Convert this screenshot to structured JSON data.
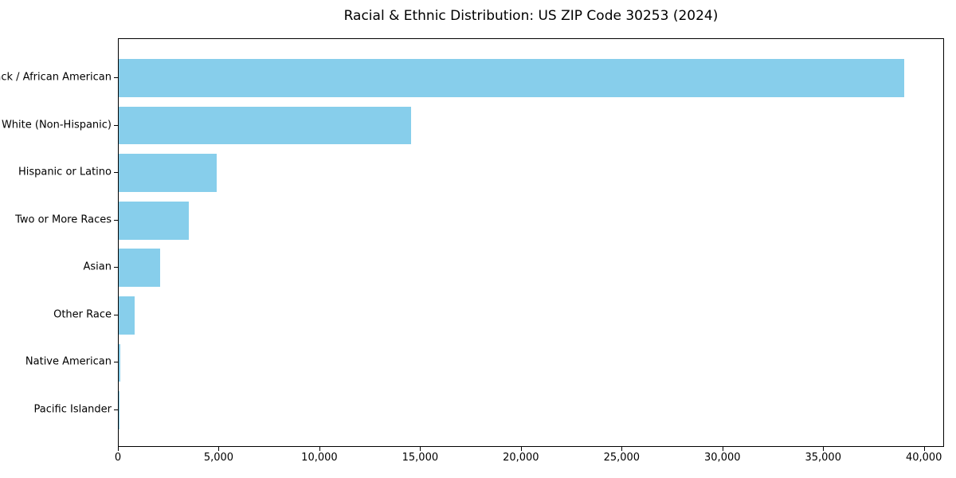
{
  "chart_data": {
    "type": "bar",
    "orientation": "horizontal",
    "title": "Racial & Ethnic Distribution: US ZIP Code 30253 (2024)",
    "categories": [
      "Black / African American",
      "White (Non-Hispanic)",
      "Hispanic or Latino",
      "Two or More Races",
      "Asian",
      "Other Race",
      "Native American",
      "Pacific Islander"
    ],
    "values": [
      39000,
      14500,
      4850,
      3470,
      2050,
      790,
      60,
      25
    ],
    "xlabel": "",
    "ylabel": "",
    "xlim": [
      0,
      41000
    ],
    "x_ticks": [
      0,
      5000,
      10000,
      15000,
      20000,
      25000,
      30000,
      35000,
      40000
    ],
    "x_tick_labels": [
      "0",
      "5,000",
      "10,000",
      "15,000",
      "20,000",
      "25,000",
      "30,000",
      "35,000",
      "40,000"
    ],
    "bar_color": "#87CEEB",
    "background_color": "#FFFFFF",
    "spine_color": "#000000",
    "grid": false,
    "legend": null
  }
}
